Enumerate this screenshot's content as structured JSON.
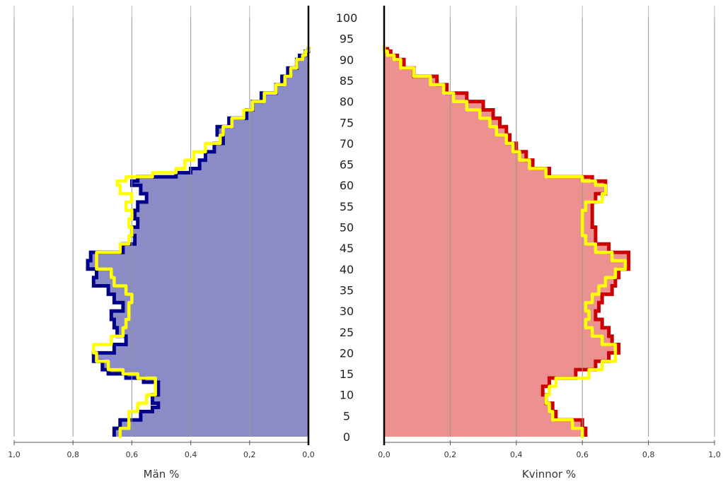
{
  "chart_data": [
    {
      "type": "area",
      "subtype": "population-pyramid-left",
      "xlabel": "Män %",
      "xlim": [
        1.0,
        0.0
      ],
      "xticks": [
        "1,0",
        "0,8",
        "0,6",
        "0,4",
        "0,2",
        "0,0"
      ],
      "ylim": [
        0,
        100
      ],
      "grid": true,
      "series": [
        {
          "name": "",
          "fill": "#8b8cc6",
          "edge": "#00008b",
          "ages": [
            0,
            2,
            4,
            6,
            7,
            8,
            10,
            12,
            13,
            14,
            15,
            16,
            18,
            20,
            22,
            24,
            26,
            28,
            30,
            32,
            34,
            36,
            38,
            40,
            42,
            44,
            46,
            48,
            50,
            52,
            54,
            56,
            58,
            60,
            61,
            62,
            63,
            64,
            66,
            68,
            70,
            72,
            74,
            76,
            78,
            80,
            82,
            84,
            86,
            88,
            90,
            91,
            92
          ],
          "values": [
            0.66,
            0.64,
            0.57,
            0.53,
            0.51,
            0.53,
            0.51,
            0.51,
            0.56,
            0.62,
            0.68,
            0.7,
            0.73,
            0.66,
            0.62,
            0.65,
            0.66,
            0.67,
            0.63,
            0.66,
            0.68,
            0.73,
            0.72,
            0.75,
            0.74,
            0.63,
            0.59,
            0.6,
            0.58,
            0.59,
            0.58,
            0.55,
            0.57,
            0.6,
            0.58,
            0.45,
            0.4,
            0.37,
            0.35,
            0.32,
            0.29,
            0.31,
            0.27,
            0.21,
            0.19,
            0.16,
            0.11,
            0.09,
            0.07,
            0.04,
            0.03,
            0.01,
            0.0
          ]
        },
        {
          "name": "",
          "color": "#ffff00",
          "ages": [
            0,
            2,
            4,
            6,
            8,
            10,
            12,
            14,
            15,
            16,
            18,
            20,
            22,
            24,
            26,
            28,
            30,
            32,
            34,
            36,
            38,
            40,
            42,
            44,
            46,
            48,
            50,
            52,
            54,
            56,
            58,
            60,
            61,
            62,
            63,
            64,
            66,
            68,
            70,
            72,
            74,
            76,
            78,
            80,
            82,
            84,
            86,
            88,
            90,
            91,
            92
          ],
          "values": [
            0.64,
            0.61,
            0.61,
            0.58,
            0.55,
            0.52,
            0.52,
            0.58,
            0.63,
            0.68,
            0.72,
            0.73,
            0.67,
            0.63,
            0.62,
            0.61,
            0.61,
            0.6,
            0.62,
            0.66,
            0.67,
            0.72,
            0.72,
            0.64,
            0.61,
            0.6,
            0.61,
            0.6,
            0.62,
            0.6,
            0.64,
            0.65,
            0.62,
            0.53,
            0.45,
            0.42,
            0.39,
            0.35,
            0.3,
            0.29,
            0.26,
            0.22,
            0.19,
            0.15,
            0.11,
            0.08,
            0.06,
            0.04,
            0.02,
            0.01,
            0.0
          ]
        }
      ]
    },
    {
      "type": "area",
      "subtype": "population-pyramid-right",
      "xlabel": "Kvinnor %",
      "xlim": [
        0.0,
        1.0
      ],
      "xticks": [
        "0,0",
        "0,2",
        "0,4",
        "0,6",
        "0,8",
        "1,0"
      ],
      "ylim": [
        0,
        100
      ],
      "grid": true,
      "series": [
        {
          "name": "",
          "fill": "#ec9090",
          "edge": "#cc0000",
          "ages": [
            0,
            2,
            4,
            6,
            8,
            10,
            12,
            14,
            16,
            18,
            20,
            22,
            24,
            26,
            28,
            30,
            32,
            34,
            36,
            38,
            40,
            42,
            44,
            46,
            48,
            50,
            52,
            54,
            56,
            58,
            60,
            61,
            62,
            64,
            66,
            68,
            70,
            72,
            74,
            76,
            78,
            80,
            82,
            84,
            86,
            88,
            90,
            91,
            92
          ],
          "values": [
            0.61,
            0.6,
            0.52,
            0.51,
            0.49,
            0.48,
            0.5,
            0.58,
            0.64,
            0.68,
            0.71,
            0.69,
            0.68,
            0.66,
            0.64,
            0.65,
            0.66,
            0.69,
            0.7,
            0.71,
            0.74,
            0.74,
            0.68,
            0.64,
            0.64,
            0.63,
            0.63,
            0.63,
            0.64,
            0.67,
            0.67,
            0.63,
            0.5,
            0.45,
            0.43,
            0.4,
            0.38,
            0.37,
            0.35,
            0.33,
            0.3,
            0.25,
            0.19,
            0.16,
            0.09,
            0.06,
            0.04,
            0.02,
            0.01
          ]
        },
        {
          "name": "",
          "color": "#ffff00",
          "ages": [
            0,
            2,
            4,
            6,
            8,
            10,
            12,
            14,
            16,
            18,
            20,
            22,
            24,
            26,
            28,
            30,
            32,
            34,
            36,
            38,
            40,
            42,
            44,
            46,
            48,
            50,
            52,
            54,
            56,
            58,
            60,
            61,
            62,
            64,
            66,
            68,
            70,
            72,
            74,
            76,
            78,
            80,
            82,
            84,
            86,
            88,
            90,
            91,
            92
          ],
          "values": [
            0.6,
            0.57,
            0.51,
            0.5,
            0.49,
            0.5,
            0.52,
            0.62,
            0.66,
            0.7,
            0.7,
            0.66,
            0.63,
            0.61,
            0.62,
            0.61,
            0.63,
            0.65,
            0.67,
            0.7,
            0.73,
            0.69,
            0.64,
            0.61,
            0.6,
            0.6,
            0.6,
            0.61,
            0.66,
            0.67,
            0.64,
            0.6,
            0.49,
            0.44,
            0.41,
            0.39,
            0.37,
            0.34,
            0.32,
            0.29,
            0.25,
            0.21,
            0.18,
            0.14,
            0.09,
            0.05,
            0.03,
            0.01,
            0.0
          ]
        }
      ]
    }
  ],
  "age_axis": {
    "ticks": [
      0,
      5,
      10,
      15,
      20,
      25,
      30,
      35,
      40,
      45,
      50,
      55,
      60,
      65,
      70,
      75,
      80,
      85,
      90,
      95,
      100
    ]
  }
}
